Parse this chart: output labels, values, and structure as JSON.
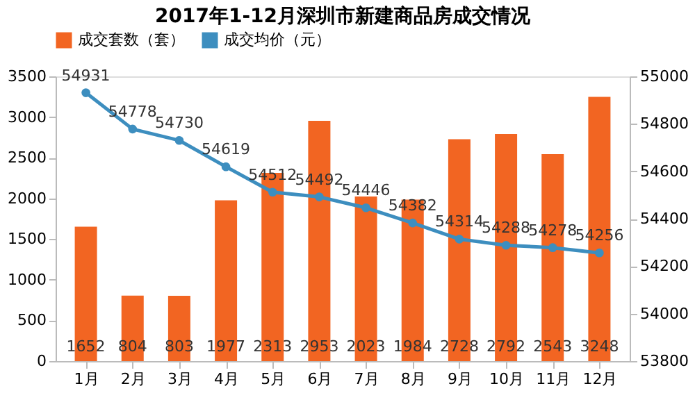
{
  "chart_data": {
    "type": "bar",
    "title": "2017年1-12月深圳市新建商品房成交情况",
    "categories": [
      "1月",
      "2月",
      "3月",
      "4月",
      "5月",
      "6月",
      "7月",
      "8月",
      "9月",
      "10月",
      "11月",
      "12月"
    ],
    "series": [
      {
        "name": "成交套数（套）",
        "color": "#f26522",
        "values": [
          1652,
          804,
          803,
          1977,
          2313,
          2953,
          2023,
          1984,
          2728,
          2792,
          2543,
          3248
        ]
      },
      {
        "name": "成交均价（元）",
        "type": "line",
        "axis": "y2",
        "color": "#3d8ebf",
        "values": [
          54931,
          54778,
          54730,
          54619,
          54512,
          54492,
          54446,
          54382,
          54314,
          54288,
          54278,
          54256
        ]
      }
    ],
    "ylim": [
      0,
      3500
    ],
    "yticks": [
      0,
      500,
      1000,
      1500,
      2000,
      2500,
      3000,
      3500
    ],
    "y2lim": [
      53800,
      55000
    ],
    "y2ticks": [
      53800,
      54000,
      54200,
      54400,
      54600,
      54800,
      55000
    ],
    "data_labels": true,
    "legend": "top",
    "grid": false,
    "marker": "circle",
    "line_style": "solid"
  }
}
